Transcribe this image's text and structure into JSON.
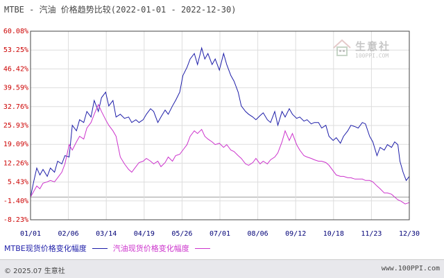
{
  "header": {
    "title": "MTBE - 汽油 价格趋势比较(2022-01-01 - 2022-12-30)"
  },
  "watermark": {
    "text": "生意社",
    "sub": "100PPI.COM"
  },
  "footer": {
    "copyright": "© 2025.07 生意社",
    "site": "www.100PPI.com"
  },
  "colors": {
    "mtbe": "#1c1ca8",
    "gasoline": "#cc33cc",
    "axis": "#444444",
    "grid": "#dddddd",
    "tick_y": "#cc0000",
    "tick_x": "#000077"
  },
  "chart_data": {
    "type": "line",
    "title": "MTBE - 汽油 价格趋势比较(2022-01-01 - 2022-12-30)",
    "ylim": [
      -8.23,
      60.08
    ],
    "y_ticks": [
      "60.08%",
      "53.25%",
      "46.42%",
      "39.59%",
      "32.76%",
      "25.93%",
      "19.09%",
      "12.26%",
      "5.43%",
      "-1.40%",
      "-8.23%"
    ],
    "x_ticks": [
      "01/01",
      "02/06",
      "03/14",
      "04/19",
      "05/26",
      "07/01",
      "08/06",
      "09/12",
      "10/18",
      "11/23",
      "12/30"
    ],
    "grid": true,
    "legend_position": "bottom",
    "series": [
      {
        "name": "MTBE现货价格变化幅度",
        "color": "#1c1ca8",
        "points": [
          [
            "2022-01-01",
            0.0
          ],
          [
            "2022-01-04",
            5.5
          ],
          [
            "2022-01-07",
            10.5
          ],
          [
            "2022-01-10",
            8.0
          ],
          [
            "2022-01-13",
            10.0
          ],
          [
            "2022-01-17",
            7.5
          ],
          [
            "2022-01-20",
            10.5
          ],
          [
            "2022-01-24",
            9.0
          ],
          [
            "2022-01-27",
            13.0
          ],
          [
            "2022-01-31",
            12.0
          ],
          [
            "2022-02-03",
            15.0
          ],
          [
            "2022-02-07",
            14.5
          ],
          [
            "2022-02-10",
            26.0
          ],
          [
            "2022-02-14",
            24.0
          ],
          [
            "2022-02-17",
            28.0
          ],
          [
            "2022-02-21",
            27.0
          ],
          [
            "2022-02-24",
            31.0
          ],
          [
            "2022-02-28",
            29.0
          ],
          [
            "2022-03-03",
            35.0
          ],
          [
            "2022-03-07",
            31.0
          ],
          [
            "2022-03-10",
            36.0
          ],
          [
            "2022-03-14",
            38.0
          ],
          [
            "2022-03-17",
            33.0
          ],
          [
            "2022-03-21",
            35.0
          ],
          [
            "2022-03-24",
            29.0
          ],
          [
            "2022-03-28",
            30.0
          ],
          [
            "2022-04-01",
            28.5
          ],
          [
            "2022-04-05",
            29.0
          ],
          [
            "2022-04-08",
            27.0
          ],
          [
            "2022-04-12",
            28.0
          ],
          [
            "2022-04-15",
            27.0
          ],
          [
            "2022-04-19",
            28.0
          ],
          [
            "2022-04-22",
            30.0
          ],
          [
            "2022-04-26",
            32.0
          ],
          [
            "2022-04-29",
            31.0
          ],
          [
            "2022-05-03",
            27.0
          ],
          [
            "2022-05-06",
            29.0
          ],
          [
            "2022-05-10",
            31.5
          ],
          [
            "2022-05-13",
            30.0
          ],
          [
            "2022-05-17",
            33.0
          ],
          [
            "2022-05-20",
            35.0
          ],
          [
            "2022-05-24",
            38.0
          ],
          [
            "2022-05-27",
            44.0
          ],
          [
            "2022-05-31",
            47.0
          ],
          [
            "2022-06-03",
            50.0
          ],
          [
            "2022-06-07",
            52.0
          ],
          [
            "2022-06-10",
            48.0
          ],
          [
            "2022-06-14",
            54.0
          ],
          [
            "2022-06-17",
            50.0
          ],
          [
            "2022-06-20",
            52.0
          ],
          [
            "2022-06-24",
            48.0
          ],
          [
            "2022-06-27",
            50.0
          ],
          [
            "2022-07-01",
            46.0
          ],
          [
            "2022-07-05",
            52.0
          ],
          [
            "2022-07-08",
            48.0
          ],
          [
            "2022-07-12",
            44.0
          ],
          [
            "2022-07-15",
            42.0
          ],
          [
            "2022-07-19",
            38.0
          ],
          [
            "2022-07-22",
            33.0
          ],
          [
            "2022-07-26",
            31.0
          ],
          [
            "2022-07-29",
            30.0
          ],
          [
            "2022-08-02",
            29.0
          ],
          [
            "2022-08-05",
            28.0
          ],
          [
            "2022-08-09",
            29.5
          ],
          [
            "2022-08-12",
            30.5
          ],
          [
            "2022-08-16",
            28.0
          ],
          [
            "2022-08-19",
            27.0
          ],
          [
            "2022-08-23",
            31.0
          ],
          [
            "2022-08-26",
            26.0
          ],
          [
            "2022-08-30",
            31.0
          ],
          [
            "2022-09-02",
            29.0
          ],
          [
            "2022-09-06",
            32.0
          ],
          [
            "2022-09-09",
            30.0
          ],
          [
            "2022-09-13",
            28.5
          ],
          [
            "2022-09-16",
            29.0
          ],
          [
            "2022-09-20",
            27.5
          ],
          [
            "2022-09-23",
            28.0
          ],
          [
            "2022-09-27",
            26.5
          ],
          [
            "2022-09-30",
            27.0
          ],
          [
            "2022-10-04",
            27.0
          ],
          [
            "2022-10-07",
            25.0
          ],
          [
            "2022-10-11",
            26.0
          ],
          [
            "2022-10-14",
            22.0
          ],
          [
            "2022-10-18",
            20.5
          ],
          [
            "2022-10-21",
            21.5
          ],
          [
            "2022-10-25",
            19.5
          ],
          [
            "2022-10-28",
            22.0
          ],
          [
            "2022-11-01",
            24.0
          ],
          [
            "2022-11-04",
            26.0
          ],
          [
            "2022-11-08",
            25.5
          ],
          [
            "2022-11-11",
            25.0
          ],
          [
            "2022-11-15",
            27.0
          ],
          [
            "2022-11-18",
            26.5
          ],
          [
            "2022-11-22",
            22.0
          ],
          [
            "2022-11-25",
            20.0
          ],
          [
            "2022-11-29",
            15.0
          ],
          [
            "2022-12-02",
            18.0
          ],
          [
            "2022-12-06",
            17.0
          ],
          [
            "2022-12-09",
            19.0
          ],
          [
            "2022-12-13",
            18.0
          ],
          [
            "2022-12-16",
            20.0
          ],
          [
            "2022-12-19",
            19.0
          ],
          [
            "2022-12-21",
            13.0
          ],
          [
            "2022-12-24",
            9.0
          ],
          [
            "2022-12-27",
            6.0
          ],
          [
            "2022-12-30",
            7.5
          ]
        ]
      },
      {
        "name": "汽油现货价格变化幅度",
        "color": "#cc33cc",
        "points": [
          [
            "2022-01-01",
            0.0
          ],
          [
            "2022-01-04",
            2.0
          ],
          [
            "2022-01-07",
            4.0
          ],
          [
            "2022-01-10",
            3.0
          ],
          [
            "2022-01-13",
            5.0
          ],
          [
            "2022-01-17",
            5.5
          ],
          [
            "2022-01-20",
            6.0
          ],
          [
            "2022-01-24",
            5.5
          ],
          [
            "2022-01-27",
            7.0
          ],
          [
            "2022-01-31",
            9.0
          ],
          [
            "2022-02-03",
            12.0
          ],
          [
            "2022-02-07",
            19.0
          ],
          [
            "2022-02-10",
            17.0
          ],
          [
            "2022-02-14",
            20.0
          ],
          [
            "2022-02-17",
            22.0
          ],
          [
            "2022-02-21",
            21.0
          ],
          [
            "2022-02-24",
            25.0
          ],
          [
            "2022-02-28",
            27.0
          ],
          [
            "2022-03-03",
            30.0
          ],
          [
            "2022-03-07",
            33.5
          ],
          [
            "2022-03-10",
            31.0
          ],
          [
            "2022-03-14",
            28.0
          ],
          [
            "2022-03-17",
            26.0
          ],
          [
            "2022-03-21",
            24.0
          ],
          [
            "2022-03-24",
            22.0
          ],
          [
            "2022-03-28",
            14.5
          ],
          [
            "2022-04-01",
            12.0
          ],
          [
            "2022-04-05",
            10.0
          ],
          [
            "2022-04-08",
            9.0
          ],
          [
            "2022-04-12",
            11.0
          ],
          [
            "2022-04-15",
            12.5
          ],
          [
            "2022-04-19",
            13.0
          ],
          [
            "2022-04-22",
            14.0
          ],
          [
            "2022-04-26",
            13.0
          ],
          [
            "2022-04-29",
            12.0
          ],
          [
            "2022-05-03",
            13.0
          ],
          [
            "2022-05-06",
            11.0
          ],
          [
            "2022-05-10",
            12.5
          ],
          [
            "2022-05-13",
            14.5
          ],
          [
            "2022-05-17",
            13.0
          ],
          [
            "2022-05-20",
            15.0
          ],
          [
            "2022-05-24",
            15.5
          ],
          [
            "2022-05-27",
            17.0
          ],
          [
            "2022-05-31",
            19.0
          ],
          [
            "2022-06-03",
            22.0
          ],
          [
            "2022-06-07",
            24.0
          ],
          [
            "2022-06-10",
            23.0
          ],
          [
            "2022-06-14",
            24.5
          ],
          [
            "2022-06-17",
            22.0
          ],
          [
            "2022-06-20",
            21.0
          ],
          [
            "2022-06-24",
            20.0
          ],
          [
            "2022-06-27",
            19.0
          ],
          [
            "2022-07-01",
            19.5
          ],
          [
            "2022-07-05",
            18.0
          ],
          [
            "2022-07-08",
            19.0
          ],
          [
            "2022-07-12",
            17.0
          ],
          [
            "2022-07-15",
            16.5
          ],
          [
            "2022-07-19",
            15.0
          ],
          [
            "2022-07-22",
            14.0
          ],
          [
            "2022-07-26",
            12.0
          ],
          [
            "2022-07-29",
            11.5
          ],
          [
            "2022-08-02",
            12.5
          ],
          [
            "2022-08-05",
            14.0
          ],
          [
            "2022-08-09",
            12.0
          ],
          [
            "2022-08-12",
            13.0
          ],
          [
            "2022-08-16",
            12.0
          ],
          [
            "2022-08-19",
            13.5
          ],
          [
            "2022-08-23",
            14.5
          ],
          [
            "2022-08-26",
            16.0
          ],
          [
            "2022-08-30",
            20.0
          ],
          [
            "2022-09-02",
            24.0
          ],
          [
            "2022-09-06",
            20.5
          ],
          [
            "2022-09-09",
            23.0
          ],
          [
            "2022-09-13",
            19.0
          ],
          [
            "2022-09-16",
            17.0
          ],
          [
            "2022-09-20",
            15.0
          ],
          [
            "2022-09-23",
            14.5
          ],
          [
            "2022-09-27",
            14.0
          ],
          [
            "2022-09-30",
            13.5
          ],
          [
            "2022-10-04",
            13.0
          ],
          [
            "2022-10-07",
            13.0
          ],
          [
            "2022-10-11",
            12.5
          ],
          [
            "2022-10-14",
            11.5
          ],
          [
            "2022-10-18",
            9.5
          ],
          [
            "2022-10-21",
            8.0
          ],
          [
            "2022-10-25",
            7.5
          ],
          [
            "2022-10-28",
            7.5
          ],
          [
            "2022-11-01",
            7.0
          ],
          [
            "2022-11-04",
            7.0
          ],
          [
            "2022-11-08",
            6.5
          ],
          [
            "2022-11-11",
            6.5
          ],
          [
            "2022-11-15",
            6.5
          ],
          [
            "2022-11-18",
            6.0
          ],
          [
            "2022-11-22",
            6.0
          ],
          [
            "2022-11-25",
            5.5
          ],
          [
            "2022-11-29",
            4.0
          ],
          [
            "2022-12-02",
            3.0
          ],
          [
            "2022-12-06",
            1.5
          ],
          [
            "2022-12-09",
            1.5
          ],
          [
            "2022-12-13",
            1.0
          ],
          [
            "2022-12-16",
            0.0
          ],
          [
            "2022-12-19",
            -1.0
          ],
          [
            "2022-12-22",
            -1.5
          ],
          [
            "2022-12-26",
            -2.5
          ],
          [
            "2022-12-30",
            -2.0
          ]
        ]
      }
    ]
  }
}
